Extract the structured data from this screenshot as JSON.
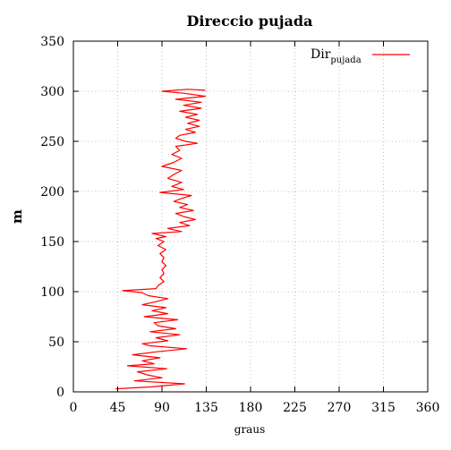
{
  "chart_data": {
    "type": "line",
    "title": "Direccio pujada",
    "xlabel": "graus",
    "ylabel": "m",
    "xlim": [
      0,
      360
    ],
    "ylim": [
      0,
      350
    ],
    "xticks": [
      0,
      45,
      90,
      135,
      180,
      225,
      270,
      315,
      360
    ],
    "yticks": [
      0,
      50,
      100,
      150,
      200,
      250,
      300,
      350
    ],
    "grid": true,
    "legend_position": "top-right",
    "series": [
      {
        "name_main": "Dir",
        "name_sub": "pujada",
        "color": "#ff0000",
        "points": [
          [
            43,
            3
          ],
          [
            80,
            5
          ],
          [
            113,
            8
          ],
          [
            62,
            11
          ],
          [
            90,
            14
          ],
          [
            75,
            17
          ],
          [
            65,
            20
          ],
          [
            95,
            23
          ],
          [
            55,
            26
          ],
          [
            82,
            28
          ],
          [
            70,
            31
          ],
          [
            88,
            34
          ],
          [
            60,
            37
          ],
          [
            85,
            40
          ],
          [
            115,
            43
          ],
          [
            78,
            46
          ],
          [
            70,
            48
          ],
          [
            96,
            51
          ],
          [
            84,
            54
          ],
          [
            108,
            57
          ],
          [
            78,
            60
          ],
          [
            104,
            63
          ],
          [
            86,
            66
          ],
          [
            82,
            69
          ],
          [
            106,
            72
          ],
          [
            72,
            75
          ],
          [
            96,
            78
          ],
          [
            80,
            81
          ],
          [
            94,
            84
          ],
          [
            70,
            87
          ],
          [
            84,
            90
          ],
          [
            96,
            93
          ],
          [
            76,
            96
          ],
          [
            70,
            99
          ],
          [
            50,
            101
          ],
          [
            84,
            103
          ],
          [
            86,
            106
          ],
          [
            92,
            110
          ],
          [
            88,
            114
          ],
          [
            92,
            118
          ],
          [
            90,
            122
          ],
          [
            94,
            126
          ],
          [
            90,
            130
          ],
          [
            92,
            134
          ],
          [
            88,
            138
          ],
          [
            94,
            142
          ],
          [
            86,
            146
          ],
          [
            92,
            150
          ],
          [
            84,
            153
          ],
          [
            94,
            155
          ],
          [
            80,
            158
          ],
          [
            110,
            160
          ],
          [
            96,
            163
          ],
          [
            118,
            166
          ],
          [
            108,
            169
          ],
          [
            124,
            172
          ],
          [
            112,
            175
          ],
          [
            104,
            178
          ],
          [
            122,
            181
          ],
          [
            108,
            184
          ],
          [
            116,
            187
          ],
          [
            102,
            190
          ],
          [
            110,
            193
          ],
          [
            120,
            196
          ],
          [
            88,
            199
          ],
          [
            112,
            202
          ],
          [
            100,
            205
          ],
          [
            110,
            209
          ],
          [
            96,
            213
          ],
          [
            102,
            217
          ],
          [
            110,
            221
          ],
          [
            90,
            225
          ],
          [
            102,
            229
          ],
          [
            110,
            233
          ],
          [
            100,
            237
          ],
          [
            108,
            241
          ],
          [
            104,
            245
          ],
          [
            126,
            248
          ],
          [
            114,
            250
          ],
          [
            104,
            253
          ],
          [
            108,
            256
          ],
          [
            124,
            259
          ],
          [
            114,
            262
          ],
          [
            128,
            265
          ],
          [
            116,
            268
          ],
          [
            128,
            271
          ],
          [
            114,
            274
          ],
          [
            126,
            277
          ],
          [
            108,
            280
          ],
          [
            130,
            283
          ],
          [
            112,
            286
          ],
          [
            130,
            289
          ],
          [
            104,
            292
          ],
          [
            134,
            295
          ],
          [
            112,
            298
          ],
          [
            90,
            300
          ],
          [
            116,
            302
          ],
          [
            134,
            301
          ]
        ]
      }
    ]
  }
}
